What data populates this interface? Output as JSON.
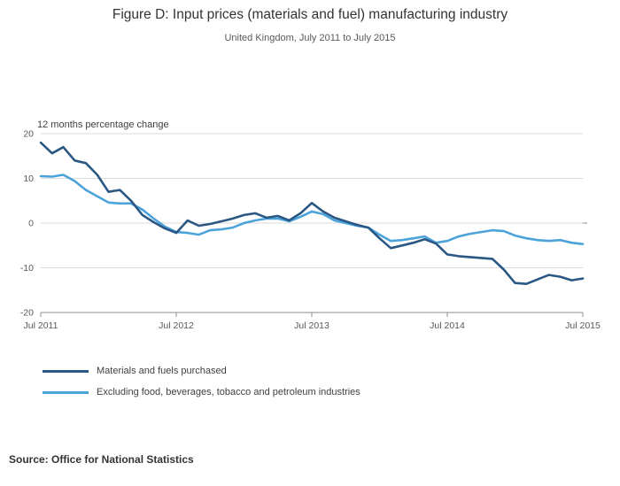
{
  "title": "Figure D: Input prices (materials and fuel) manufacturing industry",
  "subtitle": "United Kingdom, July 2011 to July 2015",
  "axis_note": "12 months percentage change",
  "source": "Source: Office for National Statistics",
  "colors": {
    "series_dark": "#2a5783",
    "series_light": "#4ba3d9",
    "grid": "#d9d9d9",
    "axis": "#8c8c8c",
    "tick_text": "#595959"
  },
  "legend": {
    "items": [
      {
        "label": "Materials and fuels purchased",
        "color": "#2a5783"
      },
      {
        "label": "Excluding food, beverages, tobacco and petroleum industries",
        "color": "#4ba3d9"
      }
    ]
  },
  "chart_data": {
    "type": "line",
    "title": "Figure D: Input prices (materials and fuel) manufacturing industry",
    "subtitle": "United Kingdom, July 2011 to July 2015",
    "ylabel": "12 months percentage change",
    "ylim": [
      -20,
      20
    ],
    "y_ticks": [
      20,
      10,
      0,
      -10,
      -20
    ],
    "x_tick_labels": [
      "Jul 2011",
      "Jul 2012",
      "Jul 2013",
      "Jul 2014",
      "Jul 2015"
    ],
    "x_tick_indices": [
      0,
      12,
      24,
      36,
      48
    ],
    "x_unit": "monthly, Jul 2011 to Jul 2015",
    "grid": true,
    "legend_position": "bottom-left",
    "series": [
      {
        "name": "Materials and fuels purchased",
        "color": "#2a5783",
        "values": [
          18.0,
          15.6,
          17.0,
          14.0,
          13.4,
          10.8,
          7.0,
          7.4,
          5.0,
          1.8,
          0.2,
          -1.2,
          -2.2,
          0.6,
          -0.6,
          -0.2,
          0.4,
          1.0,
          1.8,
          2.2,
          1.2,
          1.6,
          0.6,
          2.2,
          4.5,
          2.6,
          1.2,
          0.4,
          -0.4,
          -1.0,
          -3.4,
          -5.6,
          -5.0,
          -4.4,
          -3.6,
          -4.6,
          -7.0,
          -7.4,
          -7.6,
          -7.8,
          -8.0,
          -10.4,
          -13.4,
          -13.6,
          -12.6,
          -11.6,
          -12.0,
          -12.8,
          -12.4
        ]
      },
      {
        "name": "Excluding food, beverages, tobacco and petroleum industries",
        "color": "#4ba3d9",
        "values": [
          10.5,
          10.4,
          10.8,
          9.4,
          7.4,
          6.0,
          4.6,
          4.4,
          4.4,
          3.0,
          1.0,
          -0.8,
          -2.0,
          -2.2,
          -2.6,
          -1.6,
          -1.4,
          -1.0,
          0.0,
          0.6,
          1.0,
          1.0,
          0.4,
          1.4,
          2.6,
          2.0,
          0.6,
          0.0,
          -0.6,
          -1.0,
          -2.6,
          -4.0,
          -3.8,
          -3.4,
          -3.0,
          -4.4,
          -4.0,
          -3.0,
          -2.4,
          -2.0,
          -1.6,
          -1.8,
          -2.8,
          -3.4,
          -3.8,
          -4.0,
          -3.8,
          -4.4,
          -4.7
        ]
      }
    ]
  }
}
